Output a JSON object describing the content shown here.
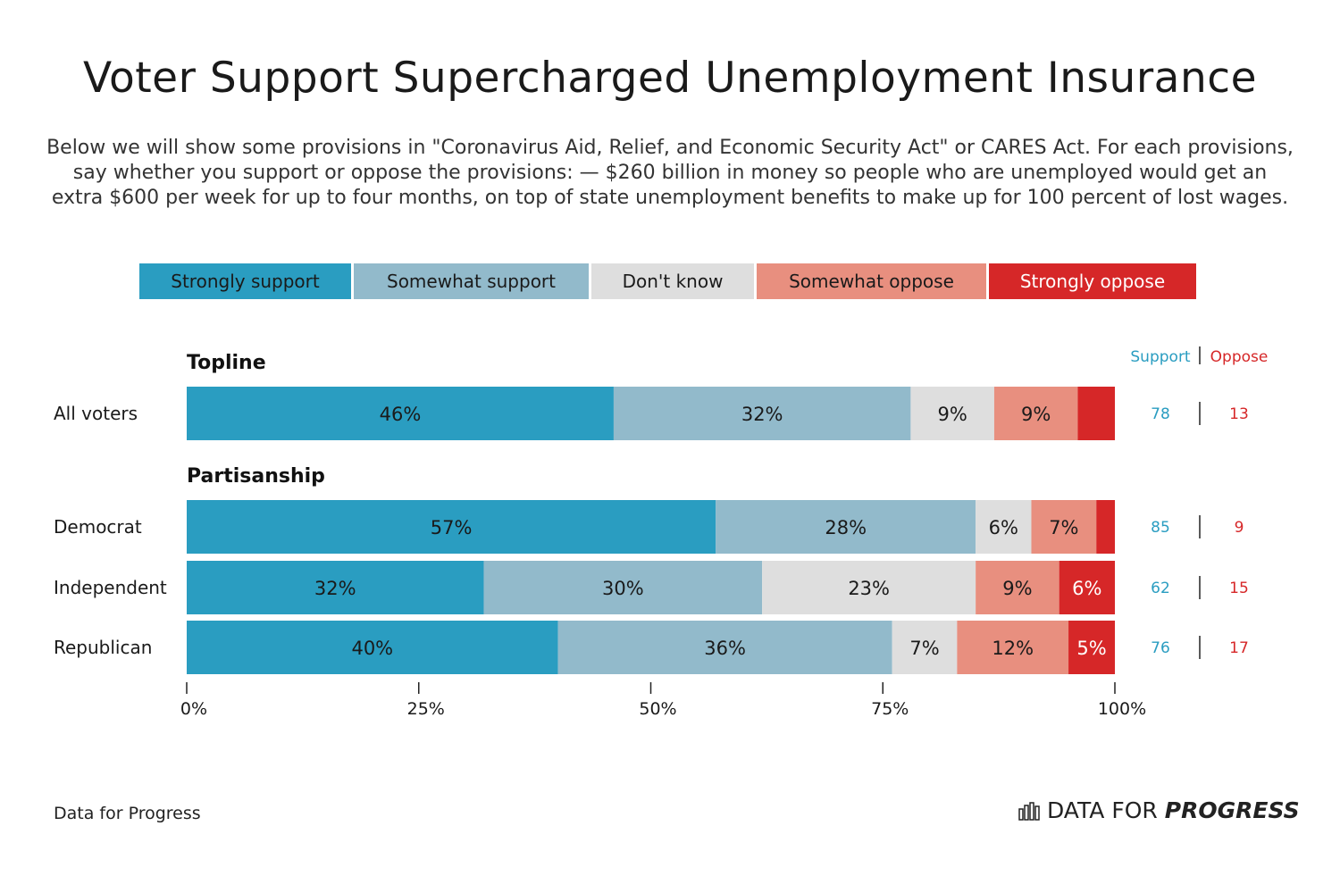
{
  "title": "Voter Support Supercharged Unemployment Insurance",
  "subtitle": "Below we will show some provisions in \"Coronavirus Aid, Relief, and Economic Security Act\" or CARES Act. For each provisions, say whether you support or oppose the provisions: — $260 billion in money so people who are unemployed would get an extra $600 per week for up to four months, on top of state unemployment benefits to make up for 100 percent of lost wages.",
  "legend": [
    {
      "label": "Strongly support",
      "color": "#2a9dc1",
      "text_color": "#1a1a1a"
    },
    {
      "label": "Somewhat support",
      "color": "#92bacb",
      "text_color": "#1a1a1a"
    },
    {
      "label": "Don't know",
      "color": "#dedede",
      "text_color": "#1a1a1a"
    },
    {
      "label": "Somewhat oppose",
      "color": "#e88f7f",
      "text_color": "#1a1a1a"
    },
    {
      "label": "Strongly oppose",
      "color": "#d62728",
      "text_color": "#ffffff"
    }
  ],
  "net_header": {
    "support": "Support",
    "oppose": "Oppose",
    "support_color": "#2a9dc1",
    "oppose_color": "#d62728"
  },
  "chart_data": {
    "type": "bar",
    "orientation": "horizontal",
    "stacked": true,
    "xlim": [
      0,
      100
    ],
    "x_ticks": [
      "0%",
      "25%",
      "50%",
      "75%",
      "100%"
    ],
    "groups": [
      {
        "name": "Topline",
        "rows": [
          {
            "label": "All voters",
            "values": [
              46,
              32,
              9,
              9,
              4
            ],
            "value_labels": [
              "46%",
              "32%",
              "9%",
              "9%",
              ""
            ],
            "support": "78",
            "oppose": "13"
          }
        ]
      },
      {
        "name": "Partisanship",
        "rows": [
          {
            "label": "Democrat",
            "values": [
              57,
              28,
              6,
              7,
              2
            ],
            "value_labels": [
              "57%",
              "28%",
              "6%",
              "7%",
              ""
            ],
            "support": "85",
            "oppose": "9"
          },
          {
            "label": "Independent",
            "values": [
              32,
              30,
              23,
              9,
              6
            ],
            "value_labels": [
              "32%",
              "30%",
              "23%",
              "9%",
              "6%"
            ],
            "support": "62",
            "oppose": "15"
          },
          {
            "label": "Republican",
            "values": [
              40,
              36,
              7,
              12,
              5
            ],
            "value_labels": [
              "40%",
              "36%",
              "7%",
              "12%",
              "5%"
            ],
            "support": "76",
            "oppose": "17"
          }
        ]
      }
    ]
  },
  "footer": {
    "source": "Data for Progress",
    "logo_regular": "DATA FOR",
    "logo_bold": "PROGRESS"
  }
}
